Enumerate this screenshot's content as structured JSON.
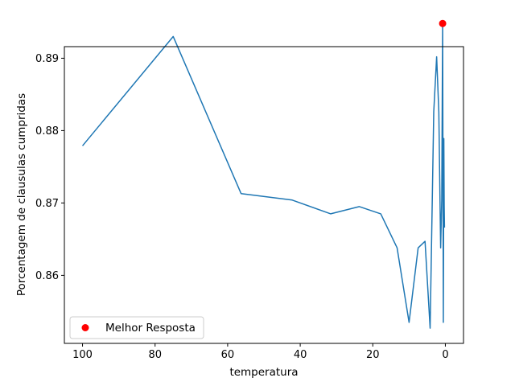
{
  "chart_data": {
    "type": "line",
    "xlabel": "temperatura",
    "ylabel": "Porcentagem de clausulas cumpridas",
    "x_inverted": true,
    "xlim": [
      105,
      -5
    ],
    "ylim": [
      0.8506,
      0.8916
    ],
    "xticks": [
      100,
      80,
      60,
      40,
      20,
      0
    ],
    "yticks": [
      0.86,
      0.87,
      0.88,
      0.89
    ],
    "ytick_labels": [
      "0.86",
      "0.87",
      "0.88",
      "0.89"
    ],
    "grid": false,
    "series": [
      {
        "type": "line",
        "color": "#1f77b4",
        "x": [
          100,
          75,
          56.3,
          42.2,
          31.6,
          23.7,
          17.8,
          13.3,
          10.0,
          7.5,
          5.6,
          4.2,
          3.2,
          2.4,
          1.8,
          1.3,
          1.0,
          0.75,
          0.56,
          0.42,
          0.32,
          0.24
        ],
        "y": [
          0.8779,
          0.893,
          0.8713,
          0.8704,
          0.8685,
          0.8695,
          0.8685,
          0.8638,
          0.8535,
          0.8638,
          0.8647,
          0.8527,
          0.8826,
          0.8902,
          0.8826,
          0.8638,
          0.8704,
          0.8948,
          0.8535,
          0.8789,
          0.8695,
          0.8666
        ]
      },
      {
        "name": "Melhor Resposta",
        "type": "scatter",
        "color": "#ff0000",
        "x": [
          0.75
        ],
        "y": [
          0.8948
        ]
      }
    ],
    "legend": {
      "placement": "lower-left",
      "entries": [
        "Melhor Resposta"
      ]
    }
  }
}
